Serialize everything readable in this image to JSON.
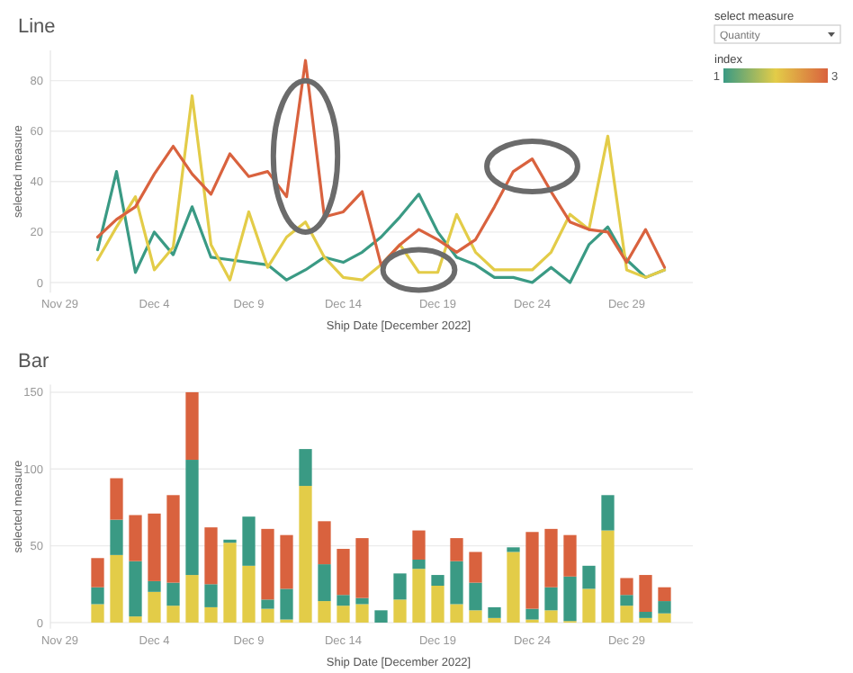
{
  "chart_data": [
    {
      "type": "line",
      "title": "Line",
      "xlabel": "Ship Date [December 2022]",
      "ylabel": "selected measure",
      "grid": "y",
      "x": [
        "2022-12-01",
        "2022-12-02",
        "2022-12-03",
        "2022-12-04",
        "2022-12-05",
        "2022-12-06",
        "2022-12-07",
        "2022-12-08",
        "2022-12-09",
        "2022-12-10",
        "2022-12-11",
        "2022-12-12",
        "2022-12-13",
        "2022-12-14",
        "2022-12-15",
        "2022-12-16",
        "2022-12-17",
        "2022-12-18",
        "2022-12-19",
        "2022-12-20",
        "2022-12-21",
        "2022-12-22",
        "2022-12-23",
        "2022-12-24",
        "2022-12-25",
        "2022-12-26",
        "2022-12-27",
        "2022-12-28",
        "2022-12-29",
        "2022-12-30",
        "2022-12-31"
      ],
      "xlim": [
        "2022-11-28T12:00",
        "2023-01-01T12:00"
      ],
      "xticks": [
        {
          "value": "2022-11-29",
          "label": "Nov 29"
        },
        {
          "value": "2022-12-04",
          "label": "Dec 4"
        },
        {
          "value": "2022-12-09",
          "label": "Dec 9"
        },
        {
          "value": "2022-12-14",
          "label": "Dec 14"
        },
        {
          "value": "2022-12-19",
          "label": "Dec 19"
        },
        {
          "value": "2022-12-24",
          "label": "Dec 24"
        },
        {
          "value": "2022-12-29",
          "label": "Dec 29"
        }
      ],
      "ylim": [
        -4,
        92
      ],
      "yticks": [
        0,
        20,
        40,
        60,
        80
      ],
      "series": [
        {
          "color": "#3a9a84",
          "values": [
            13,
            44,
            4,
            20,
            11,
            30,
            10,
            9,
            8,
            7,
            1,
            5,
            10,
            8,
            12,
            18,
            26,
            35,
            20,
            10,
            7,
            2,
            2,
            0,
            6,
            0,
            15,
            22,
            9,
            2,
            5
          ]
        },
        {
          "color": "#e3cc48",
          "values": [
            9,
            22,
            34,
            5,
            14,
            74,
            15,
            1,
            28,
            6,
            18,
            24,
            10,
            2,
            1,
            7,
            15,
            4,
            4,
            27,
            12,
            5,
            5,
            5,
            12,
            27,
            21,
            58,
            5,
            2,
            5
          ]
        },
        {
          "color": "#d9623e",
          "values": [
            18,
            25,
            30,
            43,
            54,
            43,
            35,
            51,
            42,
            44,
            34,
            88,
            26,
            28,
            36,
            7,
            15,
            21,
            17,
            12,
            17,
            30,
            44,
            49,
            36,
            24,
            21,
            20,
            8,
            21,
            6
          ]
        }
      ],
      "annotations": [
        "select measure",
        "Quantity",
        "index",
        "1",
        "3"
      ]
    },
    {
      "type": "bar",
      "stacked": true,
      "title": "Bar",
      "xlabel": "Ship Date [December 2022]",
      "ylabel": "selected measure",
      "grid": "y",
      "x": [
        "2022-12-01",
        "2022-12-02",
        "2022-12-03",
        "2022-12-04",
        "2022-12-05",
        "2022-12-06",
        "2022-12-07",
        "2022-12-08",
        "2022-12-09",
        "2022-12-10",
        "2022-12-11",
        "2022-12-12",
        "2022-12-13",
        "2022-12-14",
        "2022-12-15",
        "2022-12-16",
        "2022-12-17",
        "2022-12-18",
        "2022-12-19",
        "2022-12-20",
        "2022-12-21",
        "2022-12-22",
        "2022-12-23",
        "2022-12-24",
        "2022-12-25",
        "2022-12-26",
        "2022-12-27",
        "2022-12-28",
        "2022-12-29",
        "2022-12-30",
        "2022-12-31"
      ],
      "xlim": [
        "2022-11-28T12:00",
        "2023-01-01T12:00"
      ],
      "xticks": [
        {
          "value": "2022-11-29",
          "label": "Nov 29"
        },
        {
          "value": "2022-12-04",
          "label": "Dec 4"
        },
        {
          "value": "2022-12-09",
          "label": "Dec 9"
        },
        {
          "value": "2022-12-14",
          "label": "Dec 14"
        },
        {
          "value": "2022-12-19",
          "label": "Dec 19"
        },
        {
          "value": "2022-12-24",
          "label": "Dec 24"
        },
        {
          "value": "2022-12-29",
          "label": "Dec 29"
        }
      ],
      "ylim": [
        -4,
        155
      ],
      "yticks": [
        0,
        50,
        100,
        150
      ],
      "series": [
        {
          "color": "#e3cc48",
          "values": [
            12,
            44,
            4,
            20,
            11,
            31,
            10,
            52,
            37,
            9,
            2,
            89,
            14,
            11,
            12,
            null,
            15,
            35,
            24,
            12,
            8,
            3,
            46,
            2,
            8,
            1,
            22,
            60,
            11,
            3,
            6
          ]
        },
        {
          "color": "#3a9a84",
          "values": [
            11,
            23,
            36,
            7,
            15,
            75,
            15,
            2,
            32,
            6,
            20,
            24,
            24,
            7,
            4,
            8,
            17,
            6,
            7,
            28,
            18,
            7,
            3,
            7,
            15,
            29,
            15,
            23,
            7,
            4,
            8
          ]
        },
        {
          "color": "#d9623e",
          "values": [
            19,
            27,
            30,
            44,
            57,
            44,
            37,
            null,
            null,
            46,
            35,
            null,
            28,
            30,
            39,
            null,
            null,
            19,
            null,
            15,
            20,
            null,
            null,
            50,
            38,
            27,
            null,
            null,
            11,
            24,
            9
          ]
        }
      ]
    }
  ]
}
